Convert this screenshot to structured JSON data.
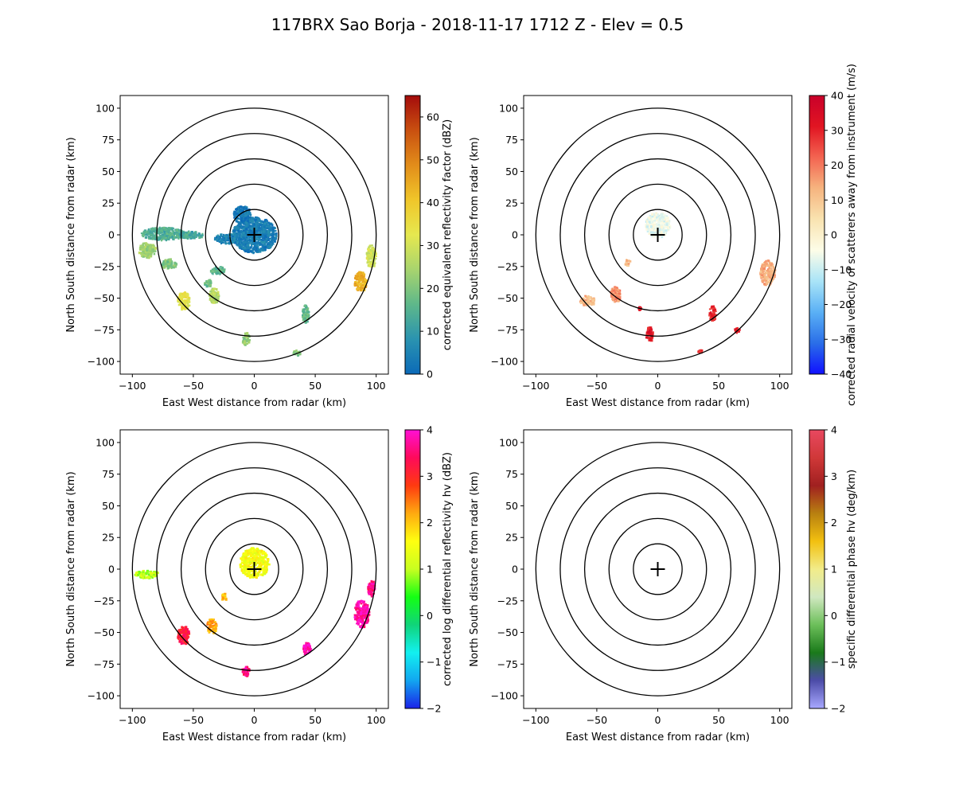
{
  "figure": {
    "title": "117BRX Sao Borja - 2018-11-17 1712 Z -  Elev = 0.5"
  },
  "chart_data": [
    {
      "type": "heatmap",
      "panel": "top-left",
      "xlabel": "East West distance from radar (km)",
      "ylabel": "North South distance from radar (km)",
      "xlim": [
        -110,
        110
      ],
      "ylim": [
        -110,
        110
      ],
      "xticks": [
        -100,
        -50,
        0,
        50,
        100
      ],
      "yticks": [
        100,
        75,
        50,
        25,
        0,
        -25,
        -50,
        -75,
        -100
      ],
      "range_rings_km": [
        20,
        40,
        60,
        80,
        100
      ],
      "colorbar": {
        "label": "corrected equivalent reflectivity factor (dBZ)",
        "vmin": 0,
        "vmax": 65,
        "ticks": [
          0,
          10,
          20,
          30,
          40,
          50,
          60
        ],
        "colors": [
          "#0b6ab8",
          "#2a93b0",
          "#5eb88a",
          "#a8d46e",
          "#e6e84f",
          "#f0c62a",
          "#e28d1a",
          "#c95010",
          "#a40b0b"
        ]
      },
      "echoes": [
        {
          "x": 0,
          "y": 0,
          "rx": 18,
          "ry": 14,
          "value": 4
        },
        {
          "x": -10,
          "y": 16,
          "rx": 7,
          "ry": 7,
          "value": 3
        },
        {
          "x": -22,
          "y": -3,
          "rx": 11,
          "ry": 4,
          "value": 5
        },
        {
          "x": -75,
          "y": 1,
          "rx": 18,
          "ry": 5,
          "value": 14
        },
        {
          "x": -52,
          "y": 0,
          "rx": 10,
          "ry": 3,
          "value": 13
        },
        {
          "x": -88,
          "y": -12,
          "rx": 7,
          "ry": 6,
          "value": 24
        },
        {
          "x": -70,
          "y": -23,
          "rx": 6,
          "ry": 4,
          "value": 20
        },
        {
          "x": -58,
          "y": -52,
          "rx": 5,
          "ry": 7,
          "value": 33
        },
        {
          "x": -33,
          "y": -48,
          "rx": 4,
          "ry": 6,
          "value": 26
        },
        {
          "x": -38,
          "y": -38,
          "rx": 3,
          "ry": 3,
          "value": 18
        },
        {
          "x": -30,
          "y": -28,
          "rx": 6,
          "ry": 3,
          "value": 16
        },
        {
          "x": -7,
          "y": -82,
          "rx": 3,
          "ry": 5,
          "value": 22
        },
        {
          "x": 42,
          "y": -62,
          "rx": 3,
          "ry": 7,
          "value": 17
        },
        {
          "x": 87,
          "y": -37,
          "rx": 5,
          "ry": 8,
          "value": 44
        },
        {
          "x": 96,
          "y": -17,
          "rx": 4,
          "ry": 9,
          "value": 30
        },
        {
          "x": 35,
          "y": -93,
          "rx": 3,
          "ry": 2,
          "value": 20
        }
      ]
    },
    {
      "type": "heatmap",
      "panel": "top-right",
      "xlabel": "East West distance from radar (km)",
      "ylabel": "North South distance from radar (km)",
      "xlim": [
        -110,
        110
      ],
      "ylim": [
        -110,
        110
      ],
      "xticks": [
        -100,
        -50,
        0,
        50,
        100
      ],
      "yticks": [
        100,
        75,
        50,
        25,
        0,
        -25,
        -50,
        -75,
        -100
      ],
      "range_rings_km": [
        20,
        40,
        60,
        80,
        100
      ],
      "colorbar": {
        "label": "corrected radial velocity of scatterers away from instrument (m/s)",
        "vmin": -40,
        "vmax": 40,
        "ticks": [
          -40,
          -30,
          -20,
          -10,
          0,
          10,
          20,
          30,
          40
        ],
        "colors": [
          "#1010ff",
          "#2a6ee8",
          "#5ab0f5",
          "#a9e4f7",
          "#fdfde8",
          "#f9e3b0",
          "#f6b47f",
          "#f36451",
          "#e11522",
          "#c9002a"
        ]
      },
      "echoes": [
        {
          "x": 0,
          "y": 8,
          "rx": 10,
          "ry": 10,
          "value": -6
        },
        {
          "x": -25,
          "y": -22,
          "rx": 2,
          "ry": 3,
          "value": 12
        },
        {
          "x": -35,
          "y": -47,
          "rx": 4,
          "ry": 6,
          "value": 18
        },
        {
          "x": -58,
          "y": -52,
          "rx": 6,
          "ry": 4,
          "value": 12
        },
        {
          "x": -7,
          "y": -78,
          "rx": 3,
          "ry": 6,
          "value": 32
        },
        {
          "x": 45,
          "y": -62,
          "rx": 3,
          "ry": 6,
          "value": 30
        },
        {
          "x": 90,
          "y": -30,
          "rx": 6,
          "ry": 10,
          "value": 14
        },
        {
          "x": 65,
          "y": -75,
          "rx": 2,
          "ry": 2,
          "value": 30
        },
        {
          "x": 35,
          "y": -92,
          "rx": 2,
          "ry": 1,
          "value": 30
        },
        {
          "x": -15,
          "y": -58,
          "rx": 1,
          "ry": 1,
          "value": 32
        }
      ]
    },
    {
      "type": "heatmap",
      "panel": "bottom-left",
      "xlabel": "East West distance from radar (km)",
      "ylabel": "North South distance from radar (km)",
      "xlim": [
        -110,
        110
      ],
      "ylim": [
        -110,
        110
      ],
      "xticks": [
        -100,
        -50,
        0,
        50,
        100
      ],
      "yticks": [
        100,
        75,
        50,
        25,
        0,
        -25,
        -50,
        -75,
        -100
      ],
      "range_rings_km": [
        20,
        40,
        60,
        80,
        100
      ],
      "colorbar": {
        "label": "corrected log differential reflectivity hv (dBZ)",
        "vmin": -2,
        "vmax": 4,
        "ticks": [
          -2,
          -1,
          0,
          1,
          2,
          3,
          4
        ],
        "colors": [
          "#1a22e8",
          "#12a6f0",
          "#12f0f0",
          "#10d47a",
          "#14ff14",
          "#c8ff20",
          "#ffff10",
          "#ffaa10",
          "#ff3a10",
          "#ff0a5a",
          "#ff10d4"
        ]
      },
      "echoes": [
        {
          "x": 0,
          "y": 5,
          "rx": 12,
          "ry": 12,
          "value": 1.5
        },
        {
          "x": -88,
          "y": -4,
          "rx": 10,
          "ry": 3,
          "value": 1.0
        },
        {
          "x": -58,
          "y": -52,
          "rx": 5,
          "ry": 7,
          "value": 3.2
        },
        {
          "x": -35,
          "y": -45,
          "rx": 4,
          "ry": 6,
          "value": 2.2
        },
        {
          "x": -25,
          "y": -22,
          "rx": 2,
          "ry": 3,
          "value": 2.0
        },
        {
          "x": -7,
          "y": -80,
          "rx": 3,
          "ry": 4,
          "value": 3.6
        },
        {
          "x": 43,
          "y": -63,
          "rx": 3,
          "ry": 5,
          "value": 3.8
        },
        {
          "x": 88,
          "y": -35,
          "rx": 6,
          "ry": 11,
          "value": 3.8
        },
        {
          "x": 96,
          "y": -15,
          "rx": 3,
          "ry": 6,
          "value": 3.6
        }
      ]
    },
    {
      "type": "heatmap",
      "panel": "bottom-right",
      "xlabel": "East West distance from radar (km)",
      "ylabel": "North South distance from radar (km)",
      "xlim": [
        -110,
        110
      ],
      "ylim": [
        -110,
        110
      ],
      "xticks": [
        -100,
        -50,
        0,
        50,
        100
      ],
      "yticks": [
        100,
        75,
        50,
        25,
        0,
        -25,
        -50,
        -75,
        -100
      ],
      "range_rings_km": [
        20,
        40,
        60,
        80,
        100
      ],
      "colorbar": {
        "label": "specific differential phase hv (deg/km)",
        "vmin": -2,
        "vmax": 4,
        "ticks": [
          -2,
          -1,
          0,
          1,
          2,
          3,
          4
        ],
        "colors": [
          "#a8a8ff",
          "#4c4ca8",
          "#1a7a1a",
          "#6cbf5a",
          "#d0e8c0",
          "#f2ec8a",
          "#f2c010",
          "#b88010",
          "#a02020",
          "#d03838",
          "#e84860"
        ]
      },
      "echoes": []
    }
  ]
}
